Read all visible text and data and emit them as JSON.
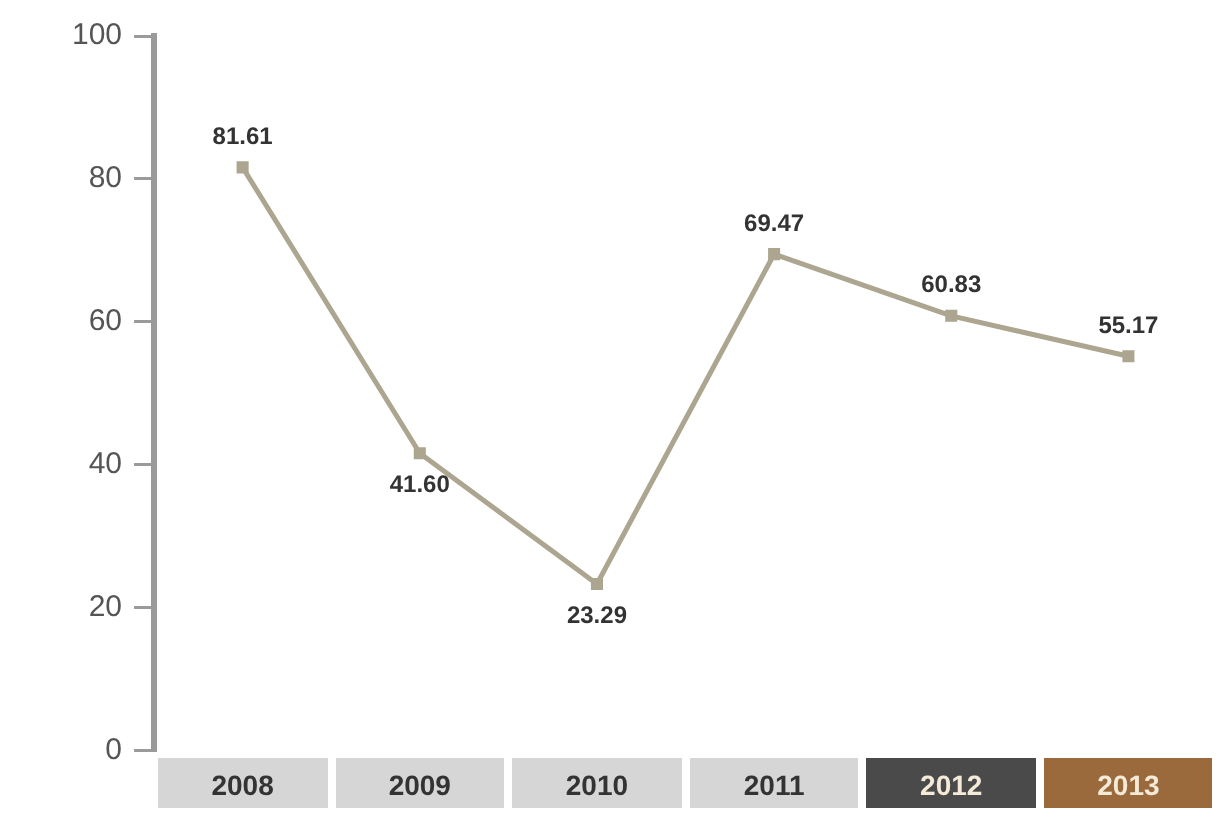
{
  "chart_data": {
    "type": "line",
    "categories": [
      "2008",
      "2009",
      "2010",
      "2011",
      "2012",
      "2013"
    ],
    "series": [
      {
        "color": "#aca590",
        "values": [
          81.61,
          41.6,
          23.29,
          69.47,
          60.83,
          55.17
        ],
        "value_labels": [
          "81.61",
          "41.60",
          "23.29",
          "69.47",
          "60.83",
          "55.17"
        ]
      }
    ],
    "ylim": [
      0,
      100
    ],
    "yticks": [
      0,
      20,
      40,
      60,
      80,
      100
    ],
    "grid": false,
    "legend": false,
    "marker": "square",
    "line_style": "solid"
  }
}
